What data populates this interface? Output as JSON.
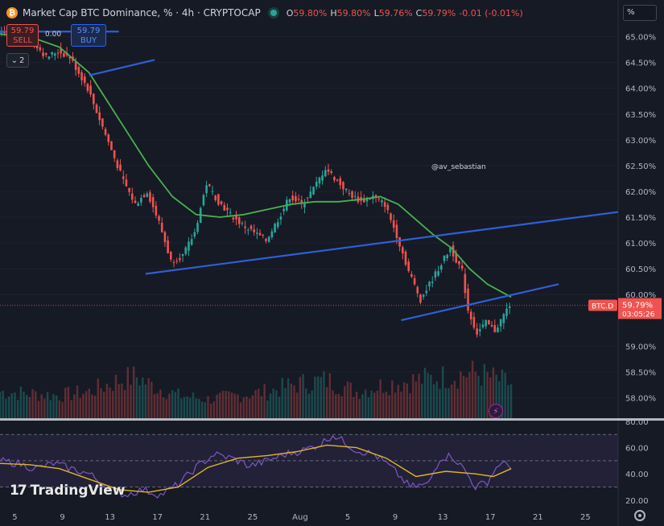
{
  "header": {
    "logo_letter": "₿",
    "title": "Market Cap BTC Dominance, % · 4h · CRYPTOCAP",
    "ohlc": [
      {
        "k": "O",
        "v": "59.80%"
      },
      {
        "k": "H",
        "v": "59.80%"
      },
      {
        "k": "L",
        "v": "59.76%"
      },
      {
        "k": "C",
        "v": "59.79%"
      },
      {
        "k": "",
        "v": "-0.01 (-0.01%)"
      }
    ]
  },
  "trade": {
    "sell_price": "59.79",
    "sell_label": "SELL",
    "spread": "0.00",
    "buy_price": "59.79",
    "buy_label": "BUY"
  },
  "indicator_count": "2",
  "unit_selector": "%",
  "watermark": "@av_sebastian",
  "brand": "TradingView",
  "brand_mark": "17",
  "colors": {
    "background": "#161a25",
    "up": "#26a69a",
    "down": "#ef5350",
    "ma": "#4caf50",
    "trendline": "#2f5fd6",
    "rsi": "#7e57c2",
    "rsi_ma": "#e0b42a"
  },
  "chart_data": {
    "type": "candlestick",
    "timeframe": "4h",
    "ylim": [
      57.6,
      65.4
    ],
    "yticks": [
      "65.00%",
      "64.50%",
      "64.00%",
      "63.50%",
      "63.00%",
      "62.50%",
      "62.00%",
      "61.50%",
      "61.00%",
      "60.50%",
      "60.00%",
      "59.00%",
      "58.50%",
      "58.00%"
    ],
    "xticks": [
      "5",
      "9",
      "13",
      "17",
      "21",
      "25",
      "Aug",
      "5",
      "9",
      "13",
      "17",
      "21",
      "25"
    ],
    "price_path": [
      [
        0,
        65.05
      ],
      [
        10,
        65.05
      ],
      [
        16,
        64.6
      ],
      [
        20,
        64.72
      ],
      [
        24,
        64.6
      ],
      [
        30,
        64.0
      ],
      [
        34,
        63.4
      ],
      [
        38,
        62.8
      ],
      [
        42,
        62.2
      ],
      [
        46,
        61.75
      ],
      [
        50,
        62.0
      ],
      [
        54,
        61.4
      ],
      [
        58,
        60.65
      ],
      [
        62,
        60.75
      ],
      [
        66,
        61.2
      ],
      [
        70,
        62.15
      ],
      [
        74,
        61.8
      ],
      [
        78,
        61.55
      ],
      [
        82,
        61.35
      ],
      [
        86,
        61.2
      ],
      [
        90,
        61.05
      ],
      [
        94,
        61.45
      ],
      [
        98,
        61.9
      ],
      [
        102,
        61.75
      ],
      [
        106,
        62.05
      ],
      [
        110,
        62.45
      ],
      [
        114,
        62.2
      ],
      [
        118,
        61.95
      ],
      [
        122,
        61.8
      ],
      [
        126,
        61.9
      ],
      [
        130,
        61.75
      ],
      [
        134,
        61.15
      ],
      [
        138,
        60.45
      ],
      [
        142,
        59.9
      ],
      [
        146,
        60.3
      ],
      [
        150,
        60.7
      ],
      [
        152,
        60.9
      ],
      [
        156,
        60.45
      ],
      [
        158,
        59.7
      ],
      [
        161,
        59.25
      ],
      [
        164,
        59.45
      ],
      [
        167,
        59.3
      ],
      [
        170,
        59.6
      ],
      [
        172,
        59.8
      ]
    ],
    "moving_average": [
      [
        0,
        65.05
      ],
      [
        10,
        65.0
      ],
      [
        20,
        64.8
      ],
      [
        30,
        64.3
      ],
      [
        40,
        63.4
      ],
      [
        50,
        62.5
      ],
      [
        58,
        61.9
      ],
      [
        66,
        61.55
      ],
      [
        74,
        61.5
      ],
      [
        82,
        61.55
      ],
      [
        90,
        61.65
      ],
      [
        98,
        61.75
      ],
      [
        106,
        61.8
      ],
      [
        114,
        61.8
      ],
      [
        122,
        61.85
      ],
      [
        128,
        61.9
      ],
      [
        134,
        61.75
      ],
      [
        140,
        61.45
      ],
      [
        146,
        61.15
      ],
      [
        152,
        60.9
      ],
      [
        158,
        60.5
      ],
      [
        164,
        60.2
      ],
      [
        172,
        59.95
      ]
    ],
    "trendlines": [
      {
        "name": "upper-channel",
        "from": [
          49,
          60.4
        ],
        "to": [
          208,
          61.6
        ]
      },
      {
        "name": "lower-channel",
        "from": [
          135,
          59.5
        ],
        "to": [
          188,
          60.2
        ]
      },
      {
        "name": "early-support",
        "from": [
          30,
          64.25
        ],
        "to": [
          52,
          64.55
        ]
      },
      {
        "name": "top-line",
        "from": [
          0,
          65.1
        ],
        "to": [
          40,
          65.1
        ]
      }
    ],
    "current_price": {
      "symbol": "BTC.D",
      "value": "59.79%",
      "countdown": "03:05:26",
      "level": 59.79
    },
    "volume": {
      "relative_profile": [
        [
          0,
          0.35
        ],
        [
          20,
          0.3
        ],
        [
          30,
          0.35
        ],
        [
          40,
          0.5
        ],
        [
          46,
          0.55
        ],
        [
          50,
          0.45
        ],
        [
          60,
          0.3
        ],
        [
          70,
          0.25
        ],
        [
          80,
          0.3
        ],
        [
          90,
          0.35
        ],
        [
          100,
          0.45
        ],
        [
          110,
          0.5
        ],
        [
          120,
          0.35
        ],
        [
          130,
          0.45
        ],
        [
          140,
          0.5
        ],
        [
          150,
          0.55
        ],
        [
          160,
          0.6
        ],
        [
          172,
          0.45
        ]
      ]
    },
    "rsi": {
      "ylim": [
        15,
        80
      ],
      "yticks": [
        "80.00",
        "60.00",
        "40.00",
        "20.00"
      ],
      "bands": [
        70,
        50,
        30
      ],
      "path": [
        [
          0,
          50
        ],
        [
          6,
          48
        ],
        [
          12,
          44
        ],
        [
          18,
          48
        ],
        [
          24,
          44
        ],
        [
          30,
          40
        ],
        [
          36,
          30
        ],
        [
          42,
          24
        ],
        [
          48,
          28
        ],
        [
          54,
          24
        ],
        [
          60,
          32
        ],
        [
          66,
          45
        ],
        [
          72,
          55
        ],
        [
          78,
          52
        ],
        [
          84,
          46
        ],
        [
          90,
          50
        ],
        [
          96,
          55
        ],
        [
          102,
          58
        ],
        [
          108,
          63
        ],
        [
          112,
          70
        ],
        [
          116,
          64
        ],
        [
          120,
          58
        ],
        [
          126,
          55
        ],
        [
          132,
          44
        ],
        [
          138,
          30
        ],
        [
          144,
          32
        ],
        [
          148,
          52
        ],
        [
          152,
          54
        ],
        [
          156,
          44
        ],
        [
          160,
          30
        ],
        [
          164,
          34
        ],
        [
          168,
          48
        ],
        [
          172,
          46
        ]
      ],
      "ma_path": [
        [
          0,
          48
        ],
        [
          10,
          47
        ],
        [
          20,
          44
        ],
        [
          30,
          36
        ],
        [
          40,
          28
        ],
        [
          50,
          26
        ],
        [
          60,
          30
        ],
        [
          70,
          45
        ],
        [
          80,
          52
        ],
        [
          90,
          54
        ],
        [
          100,
          57
        ],
        [
          110,
          62
        ],
        [
          120,
          60
        ],
        [
          130,
          52
        ],
        [
          140,
          38
        ],
        [
          150,
          42
        ],
        [
          160,
          40
        ],
        [
          166,
          38
        ],
        [
          172,
          44
        ]
      ]
    }
  }
}
